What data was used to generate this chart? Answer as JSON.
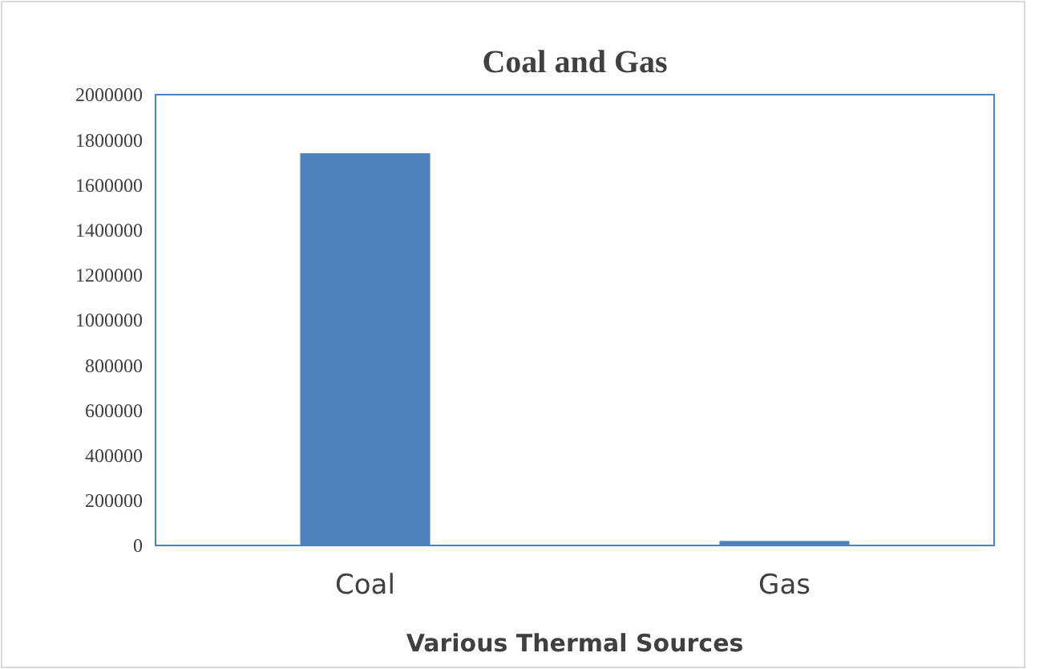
{
  "chart_data": {
    "type": "bar",
    "title": "Coal and Gas",
    "xlabel": "Various Thermal Sources",
    "categories": [
      "Coal",
      "Gas"
    ],
    "values": [
      1740000,
      20000
    ],
    "color": "#4f81bd",
    "ylim": [
      0,
      2000000
    ],
    "yticks": [
      0,
      200000,
      400000,
      600000,
      800000,
      1000000,
      1200000,
      1400000,
      1600000,
      1800000,
      2000000
    ],
    "grid": false
  }
}
